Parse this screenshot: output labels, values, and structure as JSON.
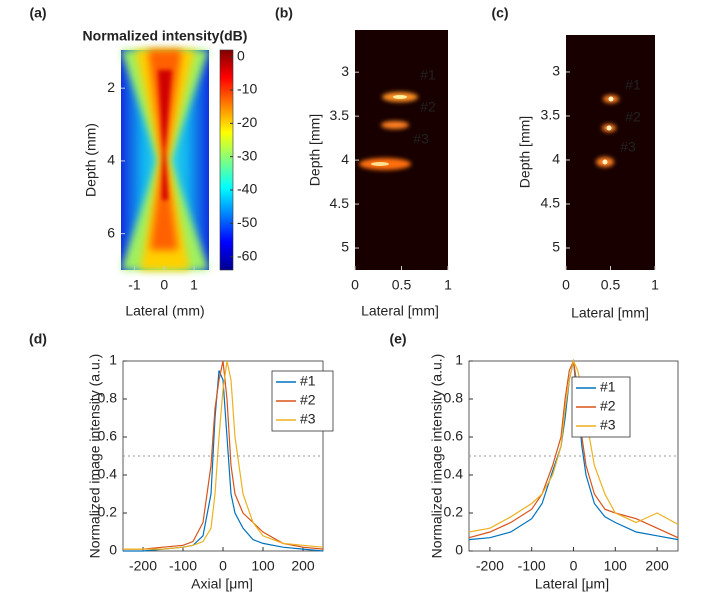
{
  "chart_data": [
    {
      "type": "image",
      "panel_label": "(a)",
      "title": "Normalized intensity(dB)",
      "xlabel": "Lateral (mm)",
      "ylabel": "Depth (mm)",
      "xlim": [
        -1.45,
        1.5
      ],
      "xticks": [
        -1,
        0,
        1
      ],
      "ylim": [
        0.95,
        7.0
      ],
      "yticks": [
        2,
        4,
        6
      ],
      "y_reversed": true,
      "colorbar": {
        "lim": [
          -64,
          2
        ],
        "ticks": [
          0,
          -10,
          -20,
          -30,
          -40,
          -50,
          -60
        ]
      }
    },
    {
      "type": "image",
      "panel_label": "(b)",
      "xlabel": "Lateral [mm]",
      "ylabel": "Depth [mm]",
      "xlim": [
        0,
        1
      ],
      "xticks": [
        0,
        0.5,
        1
      ],
      "ylim": [
        2.52,
        5.25
      ],
      "yticks": [
        3,
        3.5,
        4,
        4.5,
        5
      ],
      "y_reversed": true,
      "annotations": [
        "#1",
        "#2",
        "#3"
      ]
    },
    {
      "type": "image",
      "panel_label": "(c)",
      "xlabel": "Lateral [mm]",
      "ylabel": "Depth [mm]",
      "xlim": [
        0,
        1
      ],
      "xticks": [
        0,
        0.5,
        1
      ],
      "ylim": [
        2.58,
        5.25
      ],
      "yticks": [
        3,
        3.5,
        4,
        4.5,
        5
      ],
      "y_reversed": true,
      "annotations": [
        "#1",
        "#2",
        "#3"
      ]
    },
    {
      "type": "line",
      "panel_label": "(d)",
      "xlabel": "Axial [μm]",
      "ylabel": "Normalized image intensity (a.u.)",
      "xlim": [
        -250,
        250
      ],
      "xticks": [
        -200,
        -100,
        0,
        100,
        200
      ],
      "ylim": [
        0,
        1
      ],
      "yticks": [
        0,
        0.2,
        0.4,
        0.6,
        0.8,
        1
      ],
      "hline": 0.5,
      "legend": "upper right",
      "x": [
        -250,
        -200,
        -150,
        -100,
        -75,
        -50,
        -30,
        -20,
        -10,
        0,
        10,
        20,
        30,
        50,
        75,
        100,
        150,
        200,
        250
      ],
      "series": [
        {
          "name": "#1",
          "color": "#0072bd",
          "values": [
            0,
            0,
            0.01,
            0.02,
            0.03,
            0.08,
            0.3,
            0.7,
            0.95,
            0.9,
            0.6,
            0.3,
            0.2,
            0.12,
            0.06,
            0.04,
            0.02,
            0.01,
            0
          ]
        },
        {
          "name": "#2",
          "color": "#d95319",
          "values": [
            0.01,
            0.01,
            0.02,
            0.03,
            0.05,
            0.15,
            0.45,
            0.75,
            0.9,
            1,
            0.8,
            0.45,
            0.3,
            0.2,
            0.15,
            0.1,
            0.04,
            0.02,
            0.01
          ]
        },
        {
          "name": "#3",
          "color": "#edb120",
          "values": [
            0.01,
            0.01,
            0.01,
            0.02,
            0.03,
            0.05,
            0.12,
            0.3,
            0.6,
            0.85,
            1,
            0.9,
            0.6,
            0.3,
            0.15,
            0.08,
            0.04,
            0.03,
            0.02
          ]
        }
      ]
    },
    {
      "type": "line",
      "panel_label": "(e)",
      "xlabel": "Lateral [μm]",
      "ylabel": "Normalized image intensity (a.u.)",
      "xlim": [
        -250,
        250
      ],
      "xticks": [
        -200,
        -100,
        0,
        100,
        200
      ],
      "ylim": [
        0,
        1
      ],
      "yticks": [
        0,
        0.2,
        0.4,
        0.6,
        0.8,
        1
      ],
      "hline": 0.5,
      "legend": "upper right",
      "x": [
        -250,
        -200,
        -150,
        -100,
        -75,
        -50,
        -30,
        -20,
        -10,
        0,
        10,
        20,
        30,
        50,
        75,
        100,
        150,
        200,
        250
      ],
      "series": [
        {
          "name": "#1",
          "color": "#0072bd",
          "values": [
            0.06,
            0.07,
            0.1,
            0.17,
            0.25,
            0.42,
            0.55,
            0.7,
            0.9,
            1,
            0.78,
            0.55,
            0.4,
            0.25,
            0.18,
            0.15,
            0.1,
            0.08,
            0.06
          ]
        },
        {
          "name": "#2",
          "color": "#d95319",
          "values": [
            0.07,
            0.1,
            0.15,
            0.22,
            0.3,
            0.45,
            0.6,
            0.8,
            0.95,
            1,
            0.85,
            0.6,
            0.45,
            0.3,
            0.22,
            0.2,
            0.17,
            0.12,
            0.07
          ]
        },
        {
          "name": "#3",
          "color": "#edb120",
          "values": [
            0.1,
            0.12,
            0.18,
            0.25,
            0.3,
            0.4,
            0.55,
            0.75,
            0.9,
            1,
            0.95,
            0.85,
            0.7,
            0.45,
            0.3,
            0.2,
            0.15,
            0.2,
            0.14
          ]
        }
      ]
    }
  ]
}
